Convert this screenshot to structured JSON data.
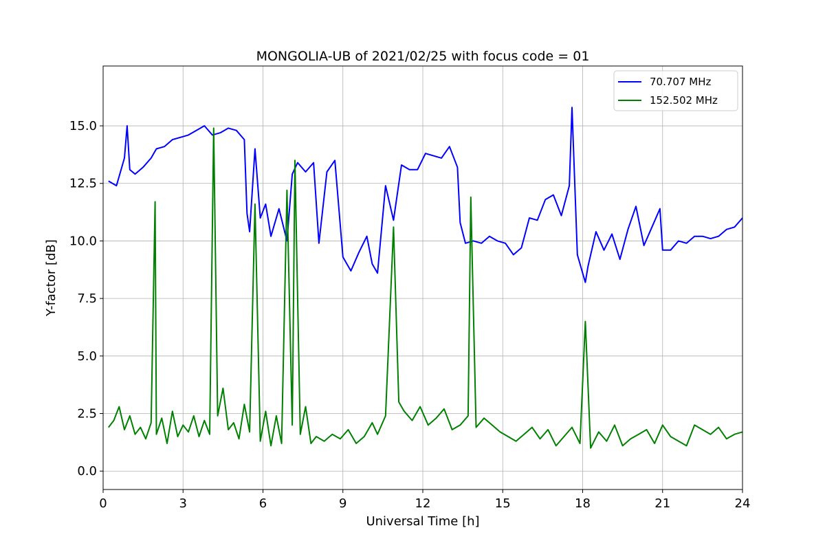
{
  "chart_data": {
    "type": "line",
    "title": "MONGOLIA-UB of 2021/02/25 with focus code = 01",
    "xlabel": "Universal Time [h]",
    "ylabel": "Y-factor [dB]",
    "xlim": [
      0,
      24
    ],
    "ylim": [
      -0.8,
      17.6
    ],
    "xticks": [
      0,
      3,
      6,
      9,
      12,
      15,
      18,
      21,
      24
    ],
    "xtick_labels": [
      "0",
      "3",
      "6",
      "9",
      "12",
      "15",
      "18",
      "21",
      "24"
    ],
    "yticks": [
      0,
      2.5,
      5,
      7.5,
      10,
      12.5,
      15
    ],
    "ytick_labels": [
      "0.0",
      "2.5",
      "5.0",
      "7.5",
      "10.0",
      "12.5",
      "15.0"
    ],
    "grid": true,
    "legend_position": "top-right",
    "series": [
      {
        "name": "70.707 MHz",
        "color": "#0000ff",
        "x": [
          0.2,
          0.5,
          0.8,
          0.9,
          1.0,
          1.2,
          1.5,
          1.8,
          2.0,
          2.3,
          2.6,
          2.9,
          3.2,
          3.5,
          3.8,
          4.1,
          4.4,
          4.7,
          5.0,
          5.3,
          5.4,
          5.5,
          5.7,
          5.9,
          6.1,
          6.3,
          6.6,
          6.9,
          7.1,
          7.3,
          7.6,
          7.9,
          8.1,
          8.4,
          8.7,
          9.0,
          9.3,
          9.6,
          9.9,
          10.1,
          10.3,
          10.6,
          10.9,
          11.2,
          11.5,
          11.8,
          12.1,
          12.4,
          12.7,
          13.0,
          13.3,
          13.4,
          13.6,
          13.9,
          14.2,
          14.5,
          14.8,
          15.1,
          15.4,
          15.7,
          16.0,
          16.3,
          16.6,
          16.9,
          17.2,
          17.5,
          17.6,
          17.8,
          18.0,
          18.1,
          18.2,
          18.5,
          18.8,
          19.1,
          19.4,
          19.7,
          20.0,
          20.3,
          20.6,
          20.9,
          21.0,
          21.3,
          21.6,
          21.9,
          22.2,
          22.5,
          22.8,
          23.1,
          23.4,
          23.7,
          24.0
        ],
        "y": [
          12.6,
          12.4,
          13.6,
          15.0,
          13.1,
          12.9,
          13.2,
          13.6,
          14.0,
          14.1,
          14.4,
          14.5,
          14.6,
          14.8,
          15.0,
          14.6,
          14.7,
          14.9,
          14.8,
          14.4,
          11.2,
          10.4,
          14.0,
          11.0,
          11.6,
          10.2,
          11.4,
          10.0,
          12.9,
          13.4,
          13.0,
          13.4,
          9.9,
          13.0,
          13.5,
          9.3,
          8.7,
          9.5,
          10.2,
          9.0,
          8.6,
          12.4,
          10.9,
          13.3,
          13.1,
          13.1,
          13.8,
          13.7,
          13.6,
          14.1,
          13.2,
          10.8,
          9.9,
          10.0,
          9.9,
          10.2,
          10.0,
          9.9,
          9.4,
          9.7,
          11.0,
          10.9,
          11.8,
          12.0,
          11.1,
          12.4,
          15.8,
          9.4,
          8.6,
          8.2,
          8.9,
          10.4,
          9.6,
          10.3,
          9.2,
          10.5,
          11.5,
          9.8,
          10.6,
          11.4,
          9.6,
          9.6,
          10.0,
          9.9,
          10.2,
          10.2,
          10.1,
          10.2,
          10.5,
          10.6,
          11.0
        ]
      },
      {
        "name": "152.502 MHz",
        "color": "#008000",
        "x": [
          0.2,
          0.4,
          0.6,
          0.8,
          1.0,
          1.2,
          1.4,
          1.6,
          1.8,
          1.95,
          2.0,
          2.2,
          2.4,
          2.6,
          2.8,
          3.0,
          3.2,
          3.4,
          3.6,
          3.8,
          4.0,
          4.15,
          4.3,
          4.5,
          4.7,
          4.9,
          5.1,
          5.3,
          5.5,
          5.7,
          5.9,
          6.1,
          6.3,
          6.5,
          6.7,
          6.9,
          7.1,
          7.2,
          7.4,
          7.6,
          7.8,
          8.0,
          8.3,
          8.6,
          8.9,
          9.2,
          9.5,
          9.8,
          10.1,
          10.3,
          10.6,
          10.9,
          11.1,
          11.3,
          11.6,
          11.9,
          12.2,
          12.5,
          12.8,
          13.1,
          13.4,
          13.7,
          13.8,
          14.0,
          14.3,
          14.6,
          14.9,
          15.2,
          15.5,
          15.8,
          16.1,
          16.4,
          16.7,
          17.0,
          17.3,
          17.6,
          17.9,
          18.1,
          18.3,
          18.6,
          18.9,
          19.2,
          19.5,
          19.8,
          20.1,
          20.4,
          20.7,
          21.0,
          21.3,
          21.6,
          21.9,
          22.2,
          22.5,
          22.8,
          23.1,
          23.4,
          23.7,
          24.0
        ],
        "y": [
          1.9,
          2.2,
          2.8,
          1.8,
          2.4,
          1.6,
          1.9,
          1.4,
          2.1,
          11.7,
          1.6,
          2.3,
          1.2,
          2.6,
          1.5,
          2.0,
          1.7,
          2.4,
          1.5,
          2.2,
          1.6,
          14.9,
          2.4,
          3.6,
          1.8,
          2.1,
          1.4,
          2.9,
          1.7,
          11.6,
          1.3,
          2.6,
          1.1,
          2.4,
          1.2,
          12.2,
          2.0,
          13.5,
          1.6,
          2.8,
          1.2,
          1.5,
          1.3,
          1.6,
          1.4,
          1.8,
          1.2,
          1.5,
          2.1,
          1.6,
          2.4,
          10.6,
          3.0,
          2.6,
          2.2,
          2.8,
          2.0,
          2.3,
          2.7,
          1.8,
          2.0,
          2.4,
          11.9,
          1.9,
          2.3,
          2.0,
          1.7,
          1.5,
          1.3,
          1.6,
          1.9,
          1.4,
          1.8,
          1.1,
          1.5,
          1.9,
          1.2,
          6.5,
          1.0,
          1.7,
          1.3,
          2.0,
          1.1,
          1.4,
          1.6,
          1.8,
          1.2,
          2.0,
          1.5,
          1.3,
          1.1,
          2.0,
          1.8,
          1.6,
          1.9,
          1.4,
          1.6,
          1.7
        ]
      }
    ]
  }
}
